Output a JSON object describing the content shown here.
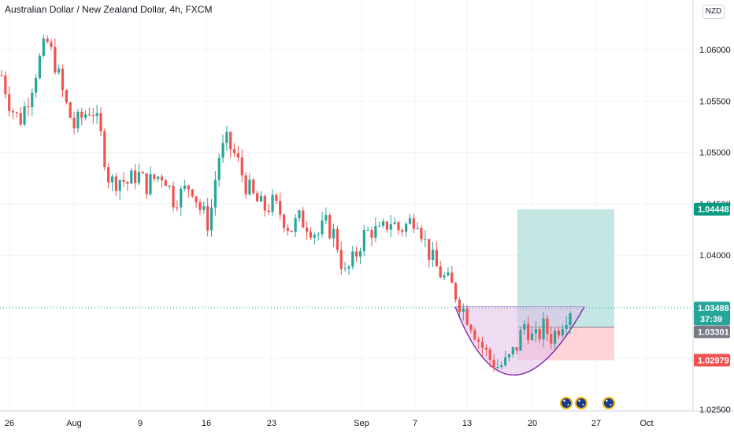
{
  "header": {
    "title": "Australian Dollar / New Zealand Dollar, 4h, FXCM",
    "currency": "NZD"
  },
  "colors": {
    "up": "#26a69a",
    "down": "#ef5350",
    "target_zone": "#b2dfdb",
    "stop_zone": "#ffcdd2",
    "cup_fill": "#e1bee7",
    "cup_line": "#7b1fa2",
    "last_tag": "#26a69a",
    "entry_tag": "#787b86",
    "stop_tag": "#ef5350",
    "target_tag": "#089981"
  },
  "chart_data": {
    "type": "candlestick",
    "title": "Australian Dollar / New Zealand Dollar, 4h, FXCM",
    "ylim": [
      1.025,
      1.0615
    ],
    "y_ticks": [
      "1.06000",
      "1.05500",
      "1.05000",
      "1.04500",
      "1.04000",
      "1.03500",
      "1.03000",
      "1.02500"
    ],
    "x_labels": [
      "26",
      "Aug",
      "9",
      "16",
      "23",
      "Sep",
      "7",
      "13",
      "20",
      "27",
      "Oct"
    ],
    "grid": true,
    "price_tags": {
      "target": "1.04448",
      "last": "1.03488",
      "countdown": "37:39",
      "entry": "1.03301",
      "stop": "1.02979"
    },
    "ohlc_path": [
      [
        "Jul 23",
        1.0575
      ],
      [
        "Jul 24",
        1.0545
      ],
      [
        "Jul 25",
        1.053
      ],
      [
        "Jul 26",
        1.0555
      ],
      [
        "Jul 27",
        1.0585
      ],
      [
        "Jul 28",
        1.0608
      ],
      [
        "Jul 29",
        1.0585
      ],
      [
        "Jul 30",
        1.055
      ],
      [
        "Jul 31",
        1.0525
      ],
      [
        "Aug 1",
        1.0535
      ],
      [
        "Aug 2",
        1.0545
      ],
      [
        "Aug 3",
        1.0515
      ],
      [
        "Aug 4",
        1.047
      ],
      [
        "Aug 5",
        1.0475
      ],
      [
        "Aug 6",
        1.047
      ],
      [
        "Aug 7",
        1.048
      ],
      [
        "Aug 8",
        1.0468
      ],
      [
        "Aug 9",
        1.0475
      ],
      [
        "Aug 10",
        1.048
      ],
      [
        "Aug 11",
        1.0455
      ],
      [
        "Aug 12",
        1.046
      ],
      [
        "Aug 13",
        1.047
      ],
      [
        "Aug 14",
        1.0445
      ],
      [
        "Aug 15",
        1.043
      ],
      [
        "Aug 16",
        1.0495
      ],
      [
        "Aug 17",
        1.051
      ],
      [
        "Aug 18",
        1.0495
      ],
      [
        "Aug 19",
        1.047
      ],
      [
        "Aug 20",
        1.0455
      ],
      [
        "Aug 21",
        1.0445
      ],
      [
        "Aug 22",
        1.045
      ],
      [
        "Aug 23",
        1.044
      ],
      [
        "Aug 24",
        1.0425
      ],
      [
        "Aug 25",
        1.0435
      ],
      [
        "Aug 26",
        1.043
      ],
      [
        "Aug 27",
        1.042
      ],
      [
        "Aug 28",
        1.043
      ],
      [
        "Aug 29",
        1.0418
      ],
      [
        "Aug 30",
        1.038
      ],
      [
        "Aug 31",
        1.0395
      ],
      [
        "Sep 1",
        1.0418
      ],
      [
        "Sep 2",
        1.0425
      ],
      [
        "Sep 3",
        1.042
      ],
      [
        "Sep 4",
        1.0435
      ],
      [
        "Sep 5",
        1.0425
      ],
      [
        "Sep 6",
        1.043
      ],
      [
        "Sep 7",
        1.044
      ],
      [
        "Sep 8",
        1.041
      ],
      [
        "Sep 9",
        1.039
      ],
      [
        "Sep 10",
        1.0378
      ],
      [
        "Sep 11",
        1.0368
      ],
      [
        "Sep 12",
        1.035
      ],
      [
        "Sep 13",
        1.0335
      ],
      [
        "Sep 14",
        1.0315
      ],
      [
        "Sep 15",
        1.03
      ],
      [
        "Sep 16",
        1.0292
      ],
      [
        "Sep 17",
        1.0295
      ],
      [
        "Sep 18",
        1.031
      ],
      [
        "Sep 19",
        1.0335
      ],
      [
        "Sep 20",
        1.0315
      ],
      [
        "Sep 21",
        1.033
      ],
      [
        "Sep 22",
        1.032
      ],
      [
        "Sep 23",
        1.0335
      ],
      [
        "Sep 24",
        1.0349
      ]
    ],
    "annotations": [
      {
        "type": "long-position",
        "entry": 1.03301,
        "target": 1.04448,
        "stop": 1.02979
      },
      {
        "type": "cup-pattern",
        "top": 1.035,
        "bottom": 1.0282
      }
    ]
  },
  "events": [
    {
      "name": "au-flag-icon"
    },
    {
      "name": "au-flag-icon"
    },
    {
      "name": "au-flag-icon"
    }
  ]
}
